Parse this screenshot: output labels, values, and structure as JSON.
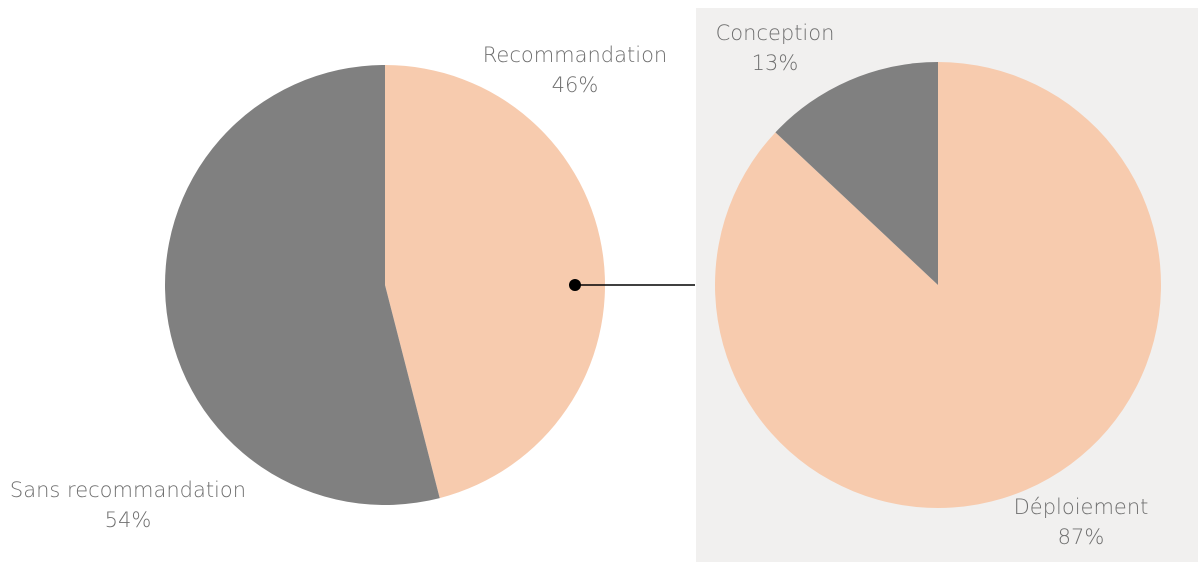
{
  "colors": {
    "peach": "#f7cbae",
    "gray": "#808080",
    "panel_bg": "#f1f0ef",
    "connector": "#000000",
    "label_text": "#6f6f6f"
  },
  "chart_data": [
    {
      "type": "pie",
      "categories": [
        "Recommandation",
        "Sans recommandation"
      ],
      "values": [
        46,
        54
      ],
      "value_labels": [
        "46%",
        "54%"
      ],
      "start_angle_deg": 0,
      "direction": "clockwise",
      "title": "",
      "legend": "none"
    },
    {
      "type": "pie",
      "categories": [
        "Déploiement",
        "Conception"
      ],
      "values": [
        87,
        13
      ],
      "value_labels": [
        "87%",
        "13%"
      ],
      "start_angle_deg": 0,
      "direction": "clockwise",
      "title": "",
      "legend": "none",
      "breakdown_of": "Recommandation"
    }
  ]
}
